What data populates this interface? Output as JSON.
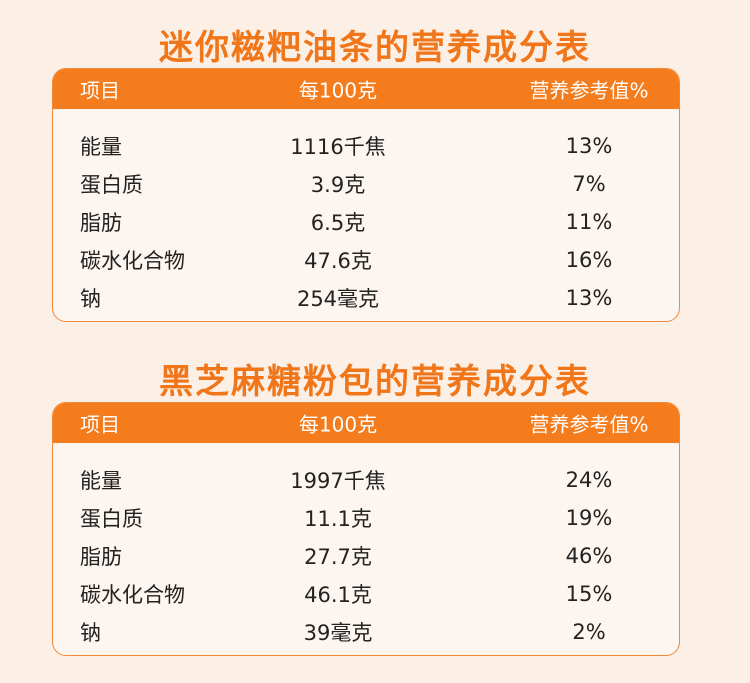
{
  "tables": [
    {
      "title": "迷你糍粑油条的营养成分表",
      "header": [
        "项目",
        "每100克",
        "营养参考值%"
      ],
      "rows": [
        [
          "能量",
          "1116千焦",
          "13%"
        ],
        [
          "蛋白质",
          "3.9克",
          "7%"
        ],
        [
          "脂肪",
          "6.5克",
          "11%"
        ],
        [
          "碳水化合物",
          "47.6克",
          "16%"
        ],
        [
          "钠",
          "254毫克",
          "13%"
        ]
      ]
    },
    {
      "title": "黑芝麻糖粉包的营养成分表",
      "header": [
        "项目",
        "每100克",
        "营养参考值%"
      ],
      "rows": [
        [
          "能量",
          "1997千焦",
          "24%"
        ],
        [
          "蛋白质",
          "11.1克",
          "19%"
        ],
        [
          "脂肪",
          "27.7克",
          "46%"
        ],
        [
          "碳水化合物",
          "46.1克",
          "15%"
        ],
        [
          "钠",
          "39毫克",
          "2%"
        ]
      ]
    }
  ]
}
